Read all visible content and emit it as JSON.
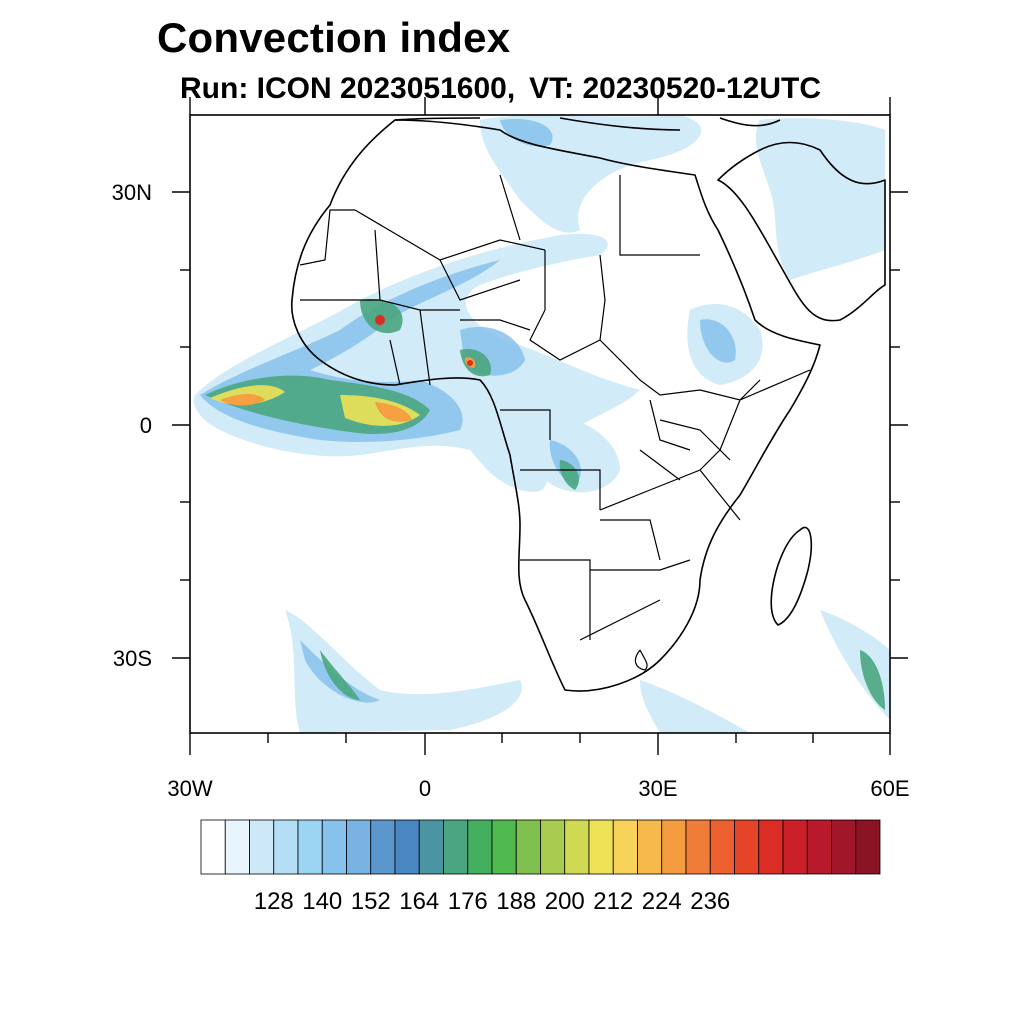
{
  "title": "Convection index",
  "subtitle": {
    "run": "Run: ICON 2023051600,",
    "vt": "VT: 20230520-12UTC"
  },
  "axes": {
    "lat_labels": [
      "30N",
      "0",
      "30S"
    ],
    "lon_labels": [
      "30W",
      "0",
      "30E",
      "60E"
    ],
    "lon_range": [
      -30,
      60
    ],
    "lat_range": [
      -40,
      40
    ]
  },
  "colorbar": {
    "labels": [
      "128",
      "140",
      "152",
      "164",
      "176",
      "188",
      "200",
      "212",
      "224",
      "236"
    ],
    "colors": [
      "#ffffff",
      "#e9f5fc",
      "#cde9f8",
      "#b4def6",
      "#9cd4f3",
      "#87c2ec",
      "#78b3e4",
      "#5b97cd",
      "#4a86c2",
      "#4b94a2",
      "#4aa680",
      "#45af60",
      "#4fb84e",
      "#7fc04e",
      "#a8cc50",
      "#cfda52",
      "#eee356",
      "#f9d25a",
      "#f7b84c",
      "#f59c40",
      "#f07d37",
      "#eb602e",
      "#e44528",
      "#dc2c26",
      "#cb1f29",
      "#b81a2b",
      "#a0172a",
      "#8a1424"
    ]
  },
  "map_data": {
    "type": "filled-contour",
    "field": "Convection index",
    "domain": "Africa"
  }
}
